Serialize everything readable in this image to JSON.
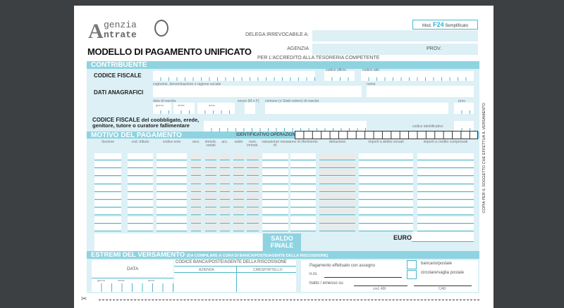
{
  "header": {
    "logo_line1": "genzia",
    "logo_line2": "ntrate",
    "logo_letter": "A",
    "mod_prefix": "Mod.",
    "mod_code": "F24",
    "mod_suffix": "Semplificato",
    "title": "MODELLO DI PAGAMENTO UNIFICATO",
    "delega_label": "DELEGA IRREVOCABILE A:",
    "agenzia_label": "AGENZIA",
    "prov_label": "PROV.",
    "accredito": "PER L'ACCREDITO ALLA TESORERIA COMPETENTE"
  },
  "contribuente": {
    "section": "CONTRIBUENTE",
    "codice_fiscale": "CODICE FISCALE",
    "codice_ufficio": "codice ufficio",
    "codice_atto": "codice atto",
    "dati_anagrafici": "DATI ANAGRAFICI",
    "cognome": "cognome, denominazione o ragione sociale",
    "nome": "nome",
    "data_nascita": "data di nascita",
    "giorno": "giorno",
    "mese": "mese",
    "anno": "anno",
    "sesso": "sesso (M o F)",
    "comune": "comune (o Stato estero) di nascita",
    "prov": "prov.",
    "cf_coobbligato_bold": "CODICE FISCALE",
    "cf_coobbligato_rest": " del coobbligato, erede,",
    "cf_coobbligato_line2": "genitore, tutore o curatore fallimentare",
    "codice_identificativo": "codice identificativo"
  },
  "motivo": {
    "section": "MOTIVO DEL PAGAMENTO",
    "identificativo": "IDENTIFICATIVO OPERAZIONE",
    "columns": [
      "Sezione",
      "cod. tributo",
      "codice ente",
      "ravv.",
      "immob. variati",
      "acc.",
      "saldo",
      "num. immob.",
      "rateazione/ mese rif.",
      "anno di riferimento",
      "detrazione",
      "importi a debito versati",
      "importi a credito compensati"
    ],
    "row_count": 10,
    "saldo_finale": "SALDO FINALE",
    "euro": "EURO"
  },
  "estremi": {
    "section": "ESTREMI DEL VERSAMENTO",
    "note": "(DA COMPILARE A CURA DI BANCA/POSTE/AGENTE DELLA RISCOSSIONE)",
    "data": "DATA",
    "giorno": "giorno",
    "mese": "mese",
    "anno": "anno",
    "codice_banca": "CODICE BANCA/POSTE/AGENTE DELLA RISCOSSIONE",
    "azienda": "AZIENDA",
    "cab_sportello": "CAB/SPORTELLO",
    "pagamento": "Pagamento effettuato con assegno",
    "nro": "n.ro",
    "tratto": "tratto / emesso su",
    "cod_abi": "cod. ABI",
    "cab": "CAB",
    "bancario": "bancario/postale",
    "circolare": "circolare/vaglia postale"
  },
  "side_text": "COPIA PER IL SOGGETTO CHE EFFETTUA IL VERSAMENTO",
  "colors": {
    "accent": "#8fd3e1",
    "panel": "#dcf0f6",
    "line": "#4ab7cc",
    "viewer_bg": "#3d4043"
  }
}
